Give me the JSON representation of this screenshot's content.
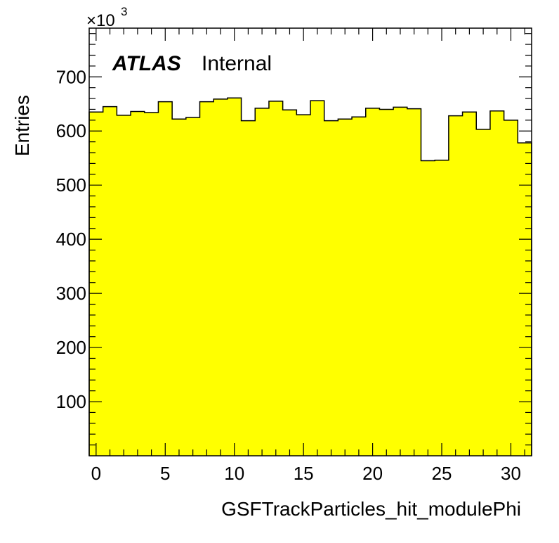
{
  "chart_data": {
    "type": "bar",
    "style": "step-histogram",
    "fill_color": "#ffff00",
    "line_color": "#000000",
    "xlabel": "GSFTrackParticles_hit_modulePhi",
    "ylabel": "Entries",
    "y_multiplier": "×10",
    "y_multiplier_exponent": "3",
    "label_bold": "ATLAS",
    "label_normal": "Internal",
    "xlim": [
      -0.5,
      31.5
    ],
    "ylim": [
      0,
      790
    ],
    "x_ticks": [
      0,
      5,
      10,
      15,
      20,
      25,
      30
    ],
    "y_ticks": [
      100,
      200,
      300,
      400,
      500,
      600,
      700
    ],
    "bin_width": 1,
    "x": [
      0,
      1,
      2,
      3,
      4,
      5,
      6,
      7,
      8,
      9,
      10,
      11,
      12,
      13,
      14,
      15,
      16,
      17,
      18,
      19,
      20,
      21,
      22,
      23,
      24,
      25,
      26,
      27,
      28,
      29,
      30,
      31
    ],
    "values": [
      635,
      645,
      629,
      636,
      634,
      654,
      622,
      625,
      654,
      659,
      661,
      619,
      642,
      655,
      639,
      630,
      656,
      619,
      622,
      626,
      642,
      640,
      644,
      641,
      545,
      546,
      628,
      635,
      603,
      637,
      620,
      578
    ],
    "grid": false,
    "legend": "none"
  }
}
